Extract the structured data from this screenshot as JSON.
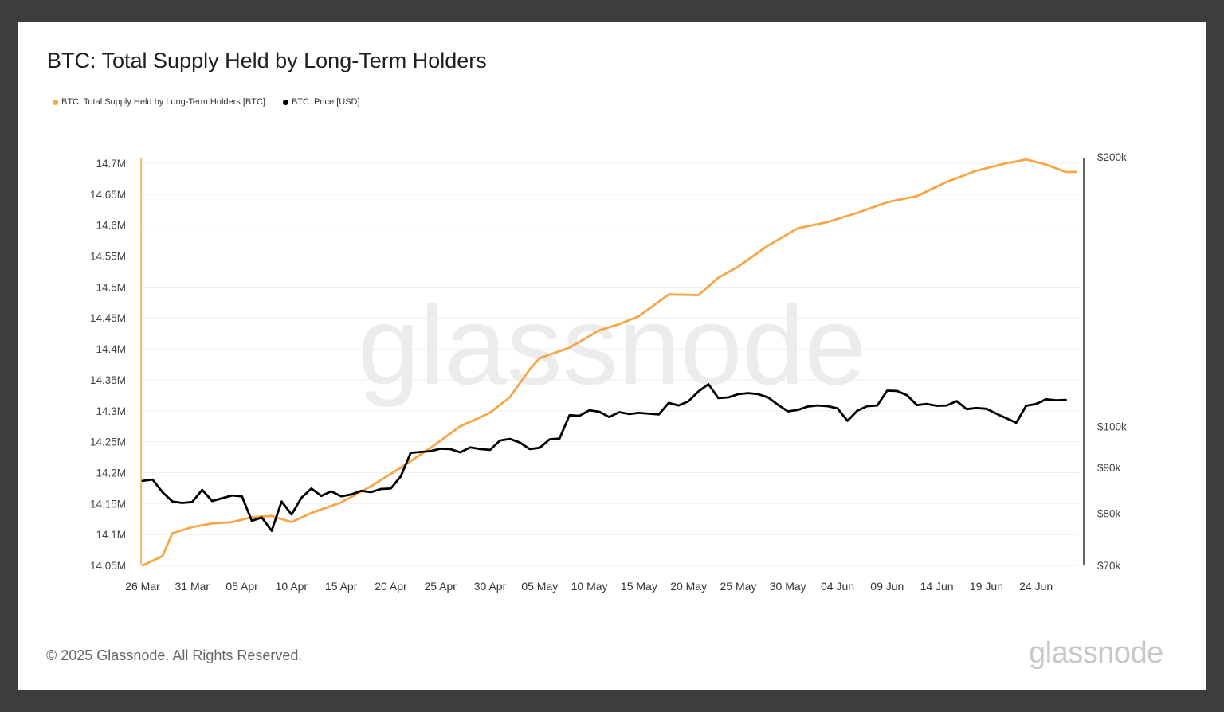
{
  "footer": {
    "copyright": "© 2025 Glassnode. All Rights Reserved.",
    "logo_text": "glassnode"
  },
  "watermark": "glassnode",
  "colors": {
    "background": "#3d3d3d",
    "card": "#ffffff",
    "lth_supply": "#f7a547",
    "price": "#000000",
    "grid": "#ededed"
  },
  "chart_data": {
    "type": "line",
    "title": "BTC: Total Supply Held by Long-Term Holders",
    "legend": [
      {
        "label": "BTC: Total Supply Held by Long-Term Holders [BTC]",
        "color": "#f7a547"
      },
      {
        "label": "BTC: Price [USD]",
        "color": "#000000"
      }
    ],
    "legend_position": "top-left",
    "grid": true,
    "x_ticks": [
      "26 Mar",
      "31 Mar",
      "05 Apr",
      "10 Apr",
      "15 Apr",
      "20 Apr",
      "25 Apr",
      "30 Apr",
      "05 May",
      "10 May",
      "15 May",
      "20 May",
      "25 May",
      "30 May",
      "04 Jun",
      "09 Jun",
      "14 Jun",
      "19 Jun",
      "24 Jun"
    ],
    "x_range": [
      "2025-03-26",
      "2025-06-28"
    ],
    "y_left": {
      "min": 14050000,
      "max": 14700000,
      "ticks": [
        14050000,
        14100000,
        14150000,
        14200000,
        14250000,
        14300000,
        14350000,
        14400000,
        14450000,
        14500000,
        14550000,
        14600000,
        14650000,
        14700000
      ],
      "tick_labels": [
        "14.05M",
        "14.1M",
        "14.15M",
        "14.2M",
        "14.25M",
        "14.3M",
        "14.35M",
        "14.4M",
        "14.45M",
        "14.5M",
        "14.55M",
        "14.6M",
        "14.65M",
        "14.7M"
      ]
    },
    "y_right": {
      "scale": "log",
      "min": 70000,
      "max": 200000,
      "ticks": [
        70000,
        80000,
        90000,
        100000,
        200000
      ],
      "tick_labels": [
        "$70k",
        "$80k",
        "$90k",
        "$100k",
        "$200k"
      ]
    },
    "series": [
      {
        "name": "BTC: Total Supply Held by Long-Term Holders [BTC]",
        "axis": "left",
        "color": "#f7a547",
        "points": [
          [
            "2025-03-26",
            14050000
          ],
          [
            "2025-03-28",
            14065000
          ],
          [
            "2025-03-29",
            14102000
          ],
          [
            "2025-03-31",
            14112000
          ],
          [
            "2025-04-02",
            14118000
          ],
          [
            "2025-04-04",
            14120000
          ],
          [
            "2025-04-06",
            14128000
          ],
          [
            "2025-04-08",
            14130000
          ],
          [
            "2025-04-10",
            14120000
          ],
          [
            "2025-04-12",
            14135000
          ],
          [
            "2025-04-15",
            14152000
          ],
          [
            "2025-04-18",
            14178000
          ],
          [
            "2025-04-21",
            14208000
          ],
          [
            "2025-04-24",
            14240000
          ],
          [
            "2025-04-27",
            14275000
          ],
          [
            "2025-04-30",
            14297000
          ],
          [
            "2025-05-02",
            14322000
          ],
          [
            "2025-05-04",
            14367000
          ],
          [
            "2025-05-05",
            14385000
          ],
          [
            "2025-05-08",
            14402000
          ],
          [
            "2025-05-11",
            14430000
          ],
          [
            "2025-05-13",
            14440000
          ],
          [
            "2025-05-15",
            14453000
          ],
          [
            "2025-05-18",
            14488000
          ],
          [
            "2025-05-21",
            14487000
          ],
          [
            "2025-05-23",
            14515000
          ],
          [
            "2025-05-25",
            14533000
          ],
          [
            "2025-05-28",
            14567000
          ],
          [
            "2025-05-31",
            14595000
          ],
          [
            "2025-06-03",
            14605000
          ],
          [
            "2025-06-06",
            14620000
          ],
          [
            "2025-06-09",
            14637000
          ],
          [
            "2025-06-12",
            14647000
          ],
          [
            "2025-06-15",
            14670000
          ],
          [
            "2025-06-18",
            14688000
          ],
          [
            "2025-06-21",
            14700000
          ],
          [
            "2025-06-23",
            14706000
          ],
          [
            "2025-06-25",
            14698000
          ],
          [
            "2025-06-27",
            14686000
          ],
          [
            "2025-06-28",
            14686000
          ]
        ]
      },
      {
        "name": "BTC: Price [USD]",
        "axis": "right",
        "color": "#000000",
        "points": [
          [
            "2025-03-26",
            87000
          ],
          [
            "2025-03-27",
            87300
          ],
          [
            "2025-03-28",
            84500
          ],
          [
            "2025-03-29",
            82500
          ],
          [
            "2025-03-30",
            82200
          ],
          [
            "2025-03-31",
            82400
          ],
          [
            "2025-04-01",
            85000
          ],
          [
            "2025-04-02",
            82600
          ],
          [
            "2025-04-03",
            83200
          ],
          [
            "2025-04-04",
            83800
          ],
          [
            "2025-04-05",
            83600
          ],
          [
            "2025-04-06",
            78500
          ],
          [
            "2025-04-07",
            79200
          ],
          [
            "2025-04-08",
            76500
          ],
          [
            "2025-04-09",
            82500
          ],
          [
            "2025-04-10",
            79800
          ],
          [
            "2025-04-11",
            83300
          ],
          [
            "2025-04-12",
            85300
          ],
          [
            "2025-04-13",
            83700
          ],
          [
            "2025-04-14",
            84700
          ],
          [
            "2025-04-15",
            83600
          ],
          [
            "2025-04-16",
            84000
          ],
          [
            "2025-04-17",
            84800
          ],
          [
            "2025-04-18",
            84500
          ],
          [
            "2025-04-19",
            85200
          ],
          [
            "2025-04-20",
            85300
          ],
          [
            "2025-04-21",
            88000
          ],
          [
            "2025-04-22",
            93500
          ],
          [
            "2025-04-23",
            93700
          ],
          [
            "2025-04-24",
            93900
          ],
          [
            "2025-04-25",
            94500
          ],
          [
            "2025-04-26",
            94400
          ],
          [
            "2025-04-27",
            93600
          ],
          [
            "2025-04-28",
            94800
          ],
          [
            "2025-04-29",
            94400
          ],
          [
            "2025-04-30",
            94200
          ],
          [
            "2025-05-01",
            96500
          ],
          [
            "2025-05-02",
            96900
          ],
          [
            "2025-05-03",
            96000
          ],
          [
            "2025-05-04",
            94400
          ],
          [
            "2025-05-05",
            94700
          ],
          [
            "2025-05-06",
            96800
          ],
          [
            "2025-05-07",
            97000
          ],
          [
            "2025-05-08",
            103000
          ],
          [
            "2025-05-09",
            102800
          ],
          [
            "2025-05-10",
            104300
          ],
          [
            "2025-05-11",
            103900
          ],
          [
            "2025-05-12",
            102500
          ],
          [
            "2025-05-13",
            103800
          ],
          [
            "2025-05-14",
            103300
          ],
          [
            "2025-05-15",
            103600
          ],
          [
            "2025-05-16",
            103400
          ],
          [
            "2025-05-17",
            103200
          ],
          [
            "2025-05-18",
            106300
          ],
          [
            "2025-05-19",
            105600
          ],
          [
            "2025-05-20",
            106800
          ],
          [
            "2025-05-21",
            109500
          ],
          [
            "2025-05-22",
            111500
          ],
          [
            "2025-05-23",
            107600
          ],
          [
            "2025-05-24",
            107800
          ],
          [
            "2025-05-25",
            108700
          ],
          [
            "2025-05-26",
            109000
          ],
          [
            "2025-05-27",
            108700
          ],
          [
            "2025-05-28",
            107800
          ],
          [
            "2025-05-29",
            105800
          ],
          [
            "2025-05-30",
            104000
          ],
          [
            "2025-05-31",
            104400
          ],
          [
            "2025-06-01",
            105300
          ],
          [
            "2025-06-02",
            105600
          ],
          [
            "2025-06-03",
            105400
          ],
          [
            "2025-06-04",
            104800
          ],
          [
            "2025-06-05",
            101500
          ],
          [
            "2025-06-06",
            104200
          ],
          [
            "2025-06-07",
            105400
          ],
          [
            "2025-06-08",
            105600
          ],
          [
            "2025-06-09",
            109700
          ],
          [
            "2025-06-10",
            109600
          ],
          [
            "2025-06-11",
            108400
          ],
          [
            "2025-06-12",
            105700
          ],
          [
            "2025-06-13",
            106000
          ],
          [
            "2025-06-14",
            105500
          ],
          [
            "2025-06-15",
            105600
          ],
          [
            "2025-06-16",
            106800
          ],
          [
            "2025-06-17",
            104600
          ],
          [
            "2025-06-18",
            104900
          ],
          [
            "2025-06-19",
            104700
          ],
          [
            "2025-06-20",
            103400
          ],
          [
            "2025-06-21",
            102200
          ],
          [
            "2025-06-22",
            101000
          ],
          [
            "2025-06-23",
            105500
          ],
          [
            "2025-06-24",
            106000
          ],
          [
            "2025-06-25",
            107300
          ],
          [
            "2025-06-26",
            107000
          ],
          [
            "2025-06-27",
            107100
          ]
        ]
      }
    ]
  }
}
